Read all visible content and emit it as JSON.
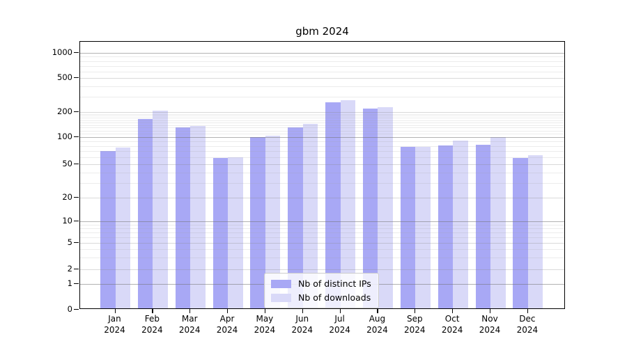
{
  "title": "gbm 2024",
  "chart_data": {
    "type": "bar",
    "title": "gbm 2024",
    "scale": "symlog",
    "grid": true,
    "legend_position": "bottom-center",
    "background": "#ffffff",
    "ylim": [
      0,
      1000
    ],
    "y_ticks": [
      0,
      1,
      2,
      5,
      10,
      20,
      50,
      100,
      200,
      500,
      1000
    ],
    "x_labels": [
      {
        "month": "Jan",
        "year": "2024"
      },
      {
        "month": "Feb",
        "year": "2024"
      },
      {
        "month": "Mar",
        "year": "2024"
      },
      {
        "month": "Apr",
        "year": "2024"
      },
      {
        "month": "May",
        "year": "2024"
      },
      {
        "month": "Jun",
        "year": "2024"
      },
      {
        "month": "Jul",
        "year": "2024"
      },
      {
        "month": "Aug",
        "year": "2024"
      },
      {
        "month": "Sep",
        "year": "2024"
      },
      {
        "month": "Oct",
        "year": "2024"
      },
      {
        "month": "Nov",
        "year": "2024"
      },
      {
        "month": "Dec",
        "year": "2024"
      }
    ],
    "series": [
      {
        "name": "Nb of distinct IPs",
        "color": "#a8a8f5",
        "values": [
          68,
          160,
          127,
          57,
          97,
          127,
          250,
          210,
          75,
          78,
          79,
          57
        ]
      },
      {
        "name": "Nb of downloads",
        "color": "#d9d9f8",
        "values": [
          74,
          199,
          130,
          58,
          100,
          138,
          265,
          218,
          75,
          88,
          97,
          61
        ]
      }
    ]
  }
}
